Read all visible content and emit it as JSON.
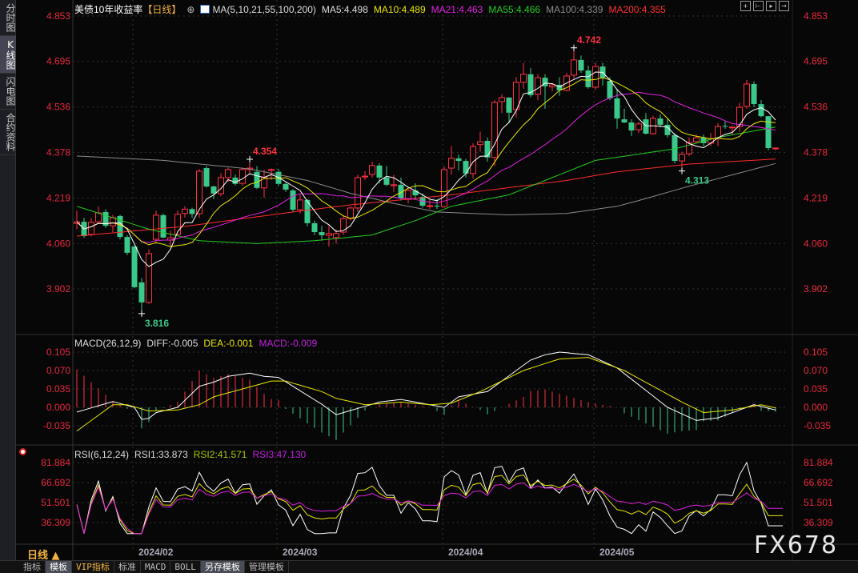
{
  "sidebar": {
    "tabs": [
      {
        "label": "分时图",
        "selected": false
      },
      {
        "label": "K线图",
        "selected": true
      },
      {
        "label": "闪电图",
        "selected": false
      },
      {
        "label": "合约资料",
        "selected": false
      }
    ]
  },
  "header": {
    "title": "美债10年收益率",
    "period_tag": "【日线】",
    "ma_label": "MA(5,10,21,55,100,200)",
    "ma5": "MA5:4.498",
    "ma10": "MA10:4.489",
    "ma21": "MA21:4.463",
    "ma55": "MA55:4.466",
    "ma100": "MA100:4.339",
    "ma200": "MA200:4.355"
  },
  "toolbar_icons": [
    "crosshair-icon",
    "zoom-range-icon",
    "play-step-icon",
    "move-right-icon"
  ],
  "macd_legend": {
    "label": "MACD(26,12,9)",
    "diff": "DIFF:-0.005",
    "dea": "DEA:-0.001",
    "macd": "MACD:-0.009"
  },
  "rsi_legend": {
    "label": "RSI(6,12,24)",
    "rsi1": "RSI1:33.873",
    "rsi2": "RSI2:41.571",
    "rsi3": "RSI3:47.130"
  },
  "period_selector": "日线 ▲",
  "bottom_tabs": [
    {
      "label": "指标"
    },
    {
      "label": "模板",
      "selected": true
    },
    {
      "label": "VIP指标",
      "vip": true
    },
    {
      "label": "标准"
    },
    {
      "label": "MACD"
    },
    {
      "label": "BOLL"
    },
    {
      "label": "另存模板",
      "selected": true
    },
    {
      "label": "管理模板"
    }
  ],
  "watermark": "FX678",
  "colors": {
    "up": "#ff3040",
    "down": "#3ac98a",
    "ma5": "#ffffff",
    "ma10": "#e8e800",
    "ma21": "#e020e0",
    "ma55": "#22cc22",
    "ma100": "#8a8a8a",
    "ma200": "#ff2a2a",
    "axis": "#e8283c"
  },
  "chart_data": {
    "type": "candlestick",
    "price_ticks": [
      "4.853",
      "4.695",
      "4.536",
      "4.378",
      "4.219",
      "4.060",
      "3.902"
    ],
    "ylim": [
      3.902,
      4.853
    ],
    "date_ticks": [
      {
        "label": "2024/02",
        "index": 8
      },
      {
        "label": "2024/03",
        "index": 28
      },
      {
        "label": "2024/04",
        "index": 51
      },
      {
        "label": "2024/05",
        "index": 72
      }
    ],
    "annotations": [
      {
        "text": "4.742",
        "index": 69,
        "type": "high"
      },
      {
        "text": "4.354",
        "index": 24,
        "type": "high"
      },
      {
        "text": "3.816",
        "index": 9,
        "type": "low"
      },
      {
        "text": "4.313",
        "index": 84,
        "type": "low"
      }
    ],
    "ohlc": [
      [
        4.13,
        4.175,
        4.11,
        4.136
      ],
      [
        4.136,
        4.15,
        4.08,
        4.086
      ],
      [
        4.092,
        4.15,
        4.085,
        4.134
      ],
      [
        4.136,
        4.19,
        4.13,
        4.167
      ],
      [
        4.17,
        4.18,
        4.115,
        4.122
      ],
      [
        4.122,
        4.16,
        4.1,
        4.15
      ],
      [
        4.156,
        4.16,
        4.075,
        4.083
      ],
      [
        4.083,
        4.09,
        4.02,
        4.028
      ],
      [
        4.05,
        4.05,
        3.905,
        3.908
      ],
      [
        3.925,
        3.94,
        3.816,
        3.855
      ],
      [
        3.855,
        4.04,
        3.85,
        4.025
      ],
      [
        4.075,
        4.175,
        4.06,
        4.159
      ],
      [
        4.159,
        4.165,
        4.078,
        4.081
      ],
      [
        4.072,
        4.105,
        4.05,
        4.08
      ],
      [
        4.092,
        4.175,
        4.085,
        4.162
      ],
      [
        4.165,
        4.19,
        4.15,
        4.18
      ],
      [
        4.18,
        4.185,
        4.15,
        4.163
      ],
      [
        4.164,
        4.32,
        4.15,
        4.312
      ],
      [
        4.323,
        4.33,
        4.255,
        4.259
      ],
      [
        4.259,
        4.262,
        4.215,
        4.234
      ],
      [
        4.234,
        4.305,
        4.225,
        4.29
      ],
      [
        4.29,
        4.325,
        4.275,
        4.318
      ],
      [
        4.29,
        4.3,
        4.262,
        4.268
      ],
      [
        4.27,
        4.325,
        4.262,
        4.318
      ],
      [
        4.318,
        4.354,
        4.305,
        4.323
      ],
      [
        4.31,
        4.33,
        4.25,
        4.254
      ],
      [
        4.254,
        4.318,
        4.22,
        4.29
      ],
      [
        4.315,
        4.322,
        4.282,
        4.318
      ],
      [
        4.31,
        4.32,
        4.26,
        4.268
      ],
      [
        4.268,
        4.273,
        4.24,
        4.248
      ],
      [
        4.245,
        4.25,
        4.17,
        4.178
      ],
      [
        4.178,
        4.23,
        4.165,
        4.212
      ],
      [
        4.212,
        4.215,
        4.12,
        4.131
      ],
      [
        4.131,
        4.14,
        4.09,
        4.1
      ],
      [
        4.1,
        4.122,
        4.07,
        4.089
      ],
      [
        4.089,
        4.122,
        4.05,
        4.095
      ],
      [
        4.081,
        4.11,
        4.06,
        4.095
      ],
      [
        4.1,
        4.16,
        4.09,
        4.147
      ],
      [
        4.147,
        4.19,
        4.14,
        4.184
      ],
      [
        4.184,
        4.3,
        4.17,
        4.29
      ],
      [
        4.292,
        4.312,
        4.282,
        4.295
      ],
      [
        4.301,
        4.345,
        4.29,
        4.332
      ],
      [
        4.332,
        4.34,
        4.27,
        4.29
      ],
      [
        4.29,
        4.33,
        4.26,
        4.265
      ],
      [
        4.262,
        4.3,
        4.24,
        4.265
      ],
      [
        4.265,
        4.29,
        4.21,
        4.217
      ],
      [
        4.214,
        4.25,
        4.2,
        4.245
      ],
      [
        4.245,
        4.27,
        4.215,
        4.228
      ],
      [
        4.223,
        4.235,
        4.185,
        4.192
      ],
      [
        4.19,
        4.215,
        4.18,
        4.192
      ],
      [
        4.192,
        4.215,
        4.18,
        4.19
      ],
      [
        4.189,
        4.33,
        4.185,
        4.318
      ],
      [
        4.323,
        4.4,
        4.3,
        4.357
      ],
      [
        4.357,
        4.37,
        4.315,
        4.348
      ],
      [
        4.348,
        4.355,
        4.29,
        4.304
      ],
      [
        4.304,
        4.41,
        4.285,
        4.398
      ],
      [
        4.405,
        4.45,
        4.38,
        4.415
      ],
      [
        4.418,
        4.43,
        4.345,
        4.36
      ],
      [
        4.36,
        4.56,
        4.33,
        4.552
      ],
      [
        4.555,
        4.58,
        4.515,
        4.569
      ],
      [
        4.569,
        4.57,
        4.48,
        4.516
      ],
      [
        4.527,
        4.64,
        4.5,
        4.622
      ],
      [
        4.622,
        4.69,
        4.6,
        4.65
      ],
      [
        4.65,
        4.672,
        4.57,
        4.577
      ],
      [
        4.58,
        4.65,
        4.56,
        4.638
      ],
      [
        4.638,
        4.65,
        4.53,
        4.608
      ],
      [
        4.606,
        4.62,
        4.59,
        4.613
      ],
      [
        4.613,
        4.64,
        4.575,
        4.594
      ],
      [
        4.594,
        4.655,
        4.59,
        4.644
      ],
      [
        4.647,
        4.742,
        4.635,
        4.7
      ],
      [
        4.7,
        4.715,
        4.655,
        4.663
      ],
      [
        4.663,
        4.68,
        4.6,
        4.605
      ],
      [
        4.605,
        4.69,
        4.595,
        4.677
      ],
      [
        4.677,
        4.69,
        4.61,
        4.638
      ],
      [
        4.627,
        4.64,
        4.56,
        4.566
      ],
      [
        4.566,
        4.6,
        4.46,
        4.496
      ],
      [
        4.493,
        4.53,
        4.48,
        4.482
      ],
      [
        4.482,
        4.493,
        4.435,
        4.454
      ],
      [
        4.457,
        4.485,
        4.445,
        4.477
      ],
      [
        4.493,
        4.515,
        4.44,
        4.443
      ],
      [
        4.443,
        4.505,
        4.44,
        4.496
      ],
      [
        4.496,
        4.51,
        4.465,
        4.474
      ],
      [
        4.474,
        4.495,
        4.43,
        4.438
      ],
      [
        4.438,
        4.445,
        4.34,
        4.348
      ],
      [
        4.348,
        4.38,
        4.313,
        4.371
      ],
      [
        4.373,
        4.43,
        4.365,
        4.412
      ],
      [
        4.415,
        4.44,
        4.41,
        4.429
      ],
      [
        4.429,
        4.44,
        4.4,
        4.41
      ],
      [
        4.41,
        4.445,
        4.4,
        4.426
      ],
      [
        4.426,
        4.48,
        4.4,
        4.468
      ],
      [
        4.47,
        4.485,
        4.46,
        4.468
      ],
      [
        4.466,
        4.47,
        4.44,
        4.466
      ],
      [
        4.468,
        4.55,
        4.45,
        4.535
      ],
      [
        4.538,
        4.63,
        4.53,
        4.616
      ],
      [
        4.616,
        4.625,
        4.535,
        4.546
      ],
      [
        4.546,
        4.56,
        4.5,
        4.504
      ],
      [
        4.504,
        4.505,
        4.385,
        4.393
      ],
      [
        4.393,
        4.395,
        4.385,
        4.393
      ]
    ],
    "ma_long": {
      "ma55": [
        [
          0,
          4.19
        ],
        [
          10,
          4.11
        ],
        [
          17,
          4.07
        ],
        [
          25,
          4.06
        ],
        [
          33,
          4.07
        ],
        [
          41,
          4.09
        ],
        [
          47,
          4.14
        ],
        [
          52,
          4.19
        ],
        [
          60,
          4.23
        ],
        [
          67,
          4.3
        ],
        [
          72,
          4.35
        ],
        [
          83,
          4.39
        ],
        [
          89,
          4.43
        ],
        [
          97,
          4.466
        ]
      ],
      "ma100": [
        [
          0,
          4.365
        ],
        [
          12,
          4.35
        ],
        [
          24,
          4.32
        ],
        [
          32,
          4.28
        ],
        [
          38,
          4.235
        ],
        [
          44,
          4.2
        ],
        [
          50,
          4.17
        ],
        [
          60,
          4.16
        ],
        [
          68,
          4.165
        ],
        [
          75,
          4.19
        ],
        [
          78,
          4.21
        ],
        [
          85,
          4.26
        ],
        [
          97,
          4.339
        ]
      ],
      "ma200": [
        [
          0,
          4.086
        ],
        [
          15,
          4.12
        ],
        [
          30,
          4.17
        ],
        [
          38,
          4.195
        ],
        [
          52,
          4.23
        ],
        [
          68,
          4.28
        ],
        [
          75,
          4.31
        ],
        [
          85,
          4.337
        ],
        [
          97,
          4.355
        ]
      ]
    },
    "macd": {
      "ticks": [
        "0.105",
        "0.070",
        "0.035",
        "0.000",
        "-0.035"
      ],
      "diff": [
        [
          0,
          -0.009
        ],
        [
          5,
          0.011
        ],
        [
          8,
          0.0
        ],
        [
          9,
          -0.023
        ],
        [
          10,
          -0.021
        ],
        [
          11,
          -0.01
        ],
        [
          14,
          0
        ],
        [
          17,
          0.04
        ],
        [
          19,
          0.048
        ],
        [
          21,
          0.059
        ],
        [
          24,
          0.065
        ],
        [
          26,
          0.059
        ],
        [
          28,
          0.057
        ],
        [
          30,
          0.04
        ],
        [
          34,
          0.006
        ],
        [
          36,
          -0.014
        ],
        [
          42,
          0.01
        ],
        [
          45,
          0.015
        ],
        [
          49,
          0.005
        ],
        [
          51,
          0.0
        ],
        [
          53,
          0.02
        ],
        [
          57,
          0.03
        ],
        [
          60,
          0.06
        ],
        [
          63,
          0.09
        ],
        [
          65,
          0.1
        ],
        [
          67,
          0.105
        ],
        [
          71,
          0.1
        ],
        [
          75,
          0.075
        ],
        [
          82,
          0.0
        ],
        [
          86,
          -0.025
        ],
        [
          89,
          -0.02
        ],
        [
          94,
          0.005
        ],
        [
          97,
          -0.005
        ]
      ],
      "dea": [
        [
          0,
          -0.045
        ],
        [
          5,
          0.005
        ],
        [
          7,
          0.005
        ],
        [
          10,
          -0.007
        ],
        [
          14,
          -0.005
        ],
        [
          17,
          0.005
        ],
        [
          19,
          0.02
        ],
        [
          23,
          0.035
        ],
        [
          27,
          0.05
        ],
        [
          29,
          0.05
        ],
        [
          34,
          0.03
        ],
        [
          36,
          0.017
        ],
        [
          40,
          0.005
        ],
        [
          45,
          0.01
        ],
        [
          49,
          0.005
        ],
        [
          52,
          0.008
        ],
        [
          56,
          0.03
        ],
        [
          62,
          0.07
        ],
        [
          67,
          0.092
        ],
        [
          71,
          0.095
        ],
        [
          76,
          0.07
        ],
        [
          80,
          0.04
        ],
        [
          84,
          0.01
        ],
        [
          87,
          -0.01
        ],
        [
          91,
          -0.005
        ],
        [
          95,
          0.005
        ],
        [
          97,
          -0.001
        ]
      ]
    },
    "rsi": {
      "ticks": [
        "81.884",
        "66.692",
        "51.501",
        "36.309"
      ],
      "periods": [
        6,
        12,
        24
      ]
    }
  }
}
